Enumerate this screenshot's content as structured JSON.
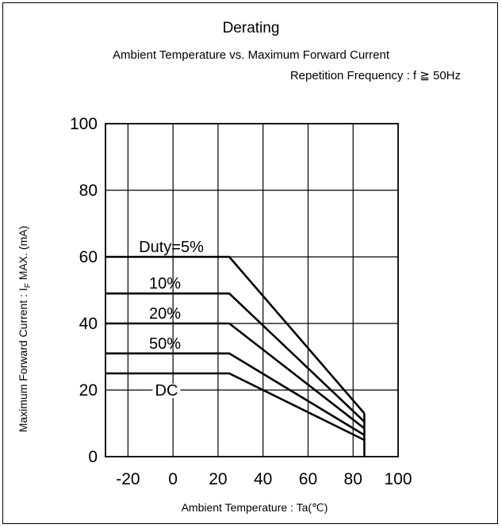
{
  "title": "Derating",
  "subtitle": "Ambient Temperature vs. Maximum Forward Current",
  "condition_note": "Repetition Frequency : f ≧ 50Hz",
  "chart_data": {
    "type": "line",
    "title": "Derating",
    "subtitle": "Ambient Temperature vs. Maximum Forward Current",
    "xlabel": "Ambient Temperature : Ta(℃)",
    "ylabel_main": "Maximum Forward Current : I",
    "ylabel_sub": "F",
    "ylabel_tail": " MAX. (mA)",
    "xlim": [
      -30,
      100
    ],
    "ylim": [
      0,
      100
    ],
    "x_ticks": [
      -20,
      0,
      20,
      40,
      60,
      80,
      100
    ],
    "y_ticks": [
      0,
      20,
      40,
      60,
      80,
      100
    ],
    "grid": true,
    "series": [
      {
        "name": "Duty=5%",
        "x": [
          -30,
          25,
          85
        ],
        "y": [
          60,
          60,
          13
        ]
      },
      {
        "name": "10%",
        "x": [
          -30,
          25,
          85
        ],
        "y": [
          49,
          49,
          10.5
        ]
      },
      {
        "name": "20%",
        "x": [
          -30,
          25,
          85
        ],
        "y": [
          40,
          40,
          8.5
        ]
      },
      {
        "name": "50%",
        "x": [
          -30,
          25,
          85
        ],
        "y": [
          31,
          31,
          6.5
        ]
      },
      {
        "name": "DC",
        "x": [
          -30,
          25,
          85
        ],
        "y": [
          25,
          25,
          5
        ]
      }
    ]
  }
}
